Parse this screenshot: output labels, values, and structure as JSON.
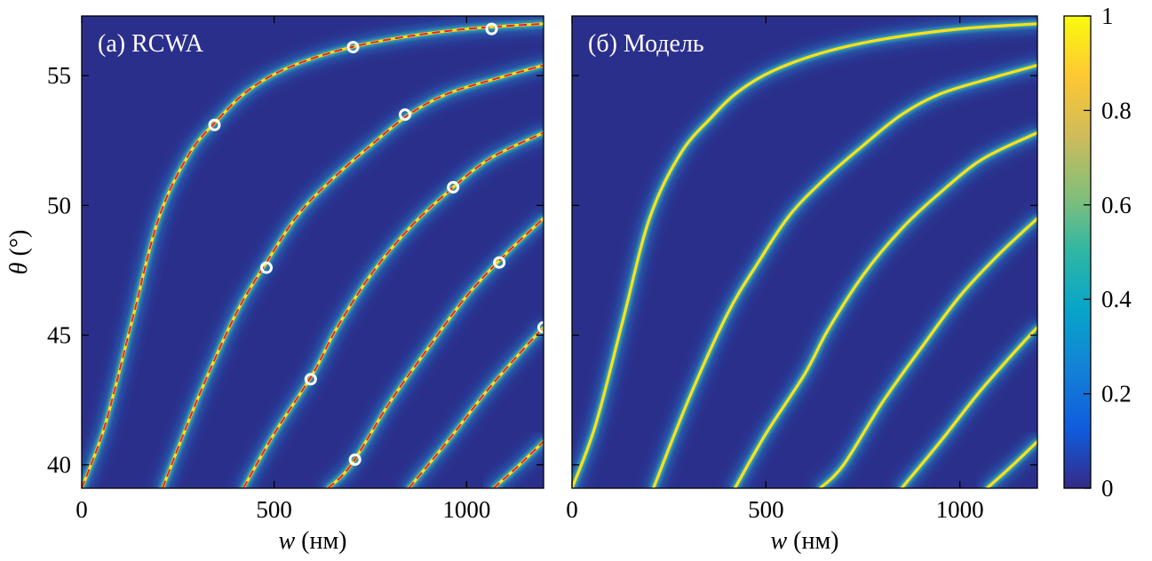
{
  "chart_data": [
    {
      "type": "heatmap",
      "panel_label": "(a) RCWA",
      "xlabel_var": "w",
      "xlabel_unit": " (нм)",
      "ylabel_var": "θ",
      "ylabel_unit": " (°)",
      "xlim": [
        0,
        1200
      ],
      "ylim": [
        39.1,
        57.3
      ],
      "xticks": [
        "0",
        "500",
        "1000"
      ],
      "yticks": [
        "40",
        "45",
        "50",
        "55"
      ],
      "colors": {
        "background": "#2b2f8c",
        "band": "#ffe01a",
        "halo": "#1f9be0",
        "fit_line": "#e8202a",
        "marker": "#ffffff"
      },
      "branches": [
        {
          "points": [
            [
              0,
              39.1
            ],
            [
              60,
              41.5
            ],
            [
              130,
              45.5
            ],
            [
              200,
              49.5
            ],
            [
              280,
              52.0
            ],
            [
              360,
              53.4
            ],
            [
              430,
              54.4
            ],
            [
              520,
              55.2
            ],
            [
              650,
              55.9
            ],
            [
              800,
              56.4
            ],
            [
              1000,
              56.8
            ],
            [
              1200,
              57.0
            ]
          ]
        },
        {
          "points": [
            [
              210,
              39.1
            ],
            [
              300,
              42.5
            ],
            [
              400,
              45.8
            ],
            [
              480,
              47.8
            ],
            [
              560,
              49.6
            ],
            [
              650,
              51.0
            ],
            [
              750,
              52.3
            ],
            [
              850,
              53.5
            ],
            [
              950,
              54.3
            ],
            [
              1080,
              54.9
            ],
            [
              1200,
              55.4
            ]
          ]
        },
        {
          "points": [
            [
              420,
              39.1
            ],
            [
              500,
              41.2
            ],
            [
              600,
              43.5
            ],
            [
              660,
              45.2
            ],
            [
              750,
              47.3
            ],
            [
              850,
              49.1
            ],
            [
              950,
              50.5
            ],
            [
              1060,
              51.8
            ],
            [
              1200,
              52.8
            ]
          ]
        },
        {
          "points": [
            [
              640,
              39.1
            ],
            [
              700,
              40.0
            ],
            [
              800,
              42.4
            ],
            [
              900,
              44.5
            ],
            [
              1000,
              46.5
            ],
            [
              1100,
              48.1
            ],
            [
              1200,
              49.5
            ]
          ]
        },
        {
          "points": [
            [
              850,
              39.1
            ],
            [
              950,
              40.9
            ],
            [
              1050,
              42.8
            ],
            [
              1150,
              44.5
            ],
            [
              1200,
              45.3
            ]
          ]
        },
        {
          "points": [
            [
              1070,
              39.1
            ],
            [
              1130,
              39.9
            ],
            [
              1200,
              40.9
            ]
          ]
        }
      ],
      "markers": [
        [
          345,
          53.1
        ],
        [
          705,
          56.1
        ],
        [
          1065,
          56.8
        ],
        [
          840,
          53.5
        ],
        [
          480,
          47.6
        ],
        [
          965,
          50.7
        ],
        [
          1085,
          47.8
        ],
        [
          595,
          43.3
        ],
        [
          1200,
          45.3
        ],
        [
          710,
          40.2
        ]
      ]
    },
    {
      "type": "heatmap",
      "panel_label": "(б) Модель",
      "xlabel_var": "w",
      "xlabel_unit": " (нм)",
      "xlim": [
        0,
        1200
      ],
      "ylim": [
        39.1,
        57.3
      ],
      "xticks": [
        "0",
        "500",
        "1000"
      ],
      "branches": [
        {
          "points": [
            [
              0,
              39.1
            ],
            [
              60,
              41.5
            ],
            [
              130,
              45.5
            ],
            [
              200,
              49.5
            ],
            [
              280,
              52.0
            ],
            [
              360,
              53.4
            ],
            [
              430,
              54.4
            ],
            [
              520,
              55.2
            ],
            [
              650,
              55.9
            ],
            [
              800,
              56.4
            ],
            [
              1000,
              56.8
            ],
            [
              1200,
              57.0
            ]
          ]
        },
        {
          "points": [
            [
              210,
              39.1
            ],
            [
              300,
              42.5
            ],
            [
              400,
              45.8
            ],
            [
              480,
              47.8
            ],
            [
              560,
              49.6
            ],
            [
              650,
              51.0
            ],
            [
              750,
              52.3
            ],
            [
              850,
              53.5
            ],
            [
              950,
              54.3
            ],
            [
              1080,
              54.9
            ],
            [
              1200,
              55.4
            ]
          ]
        },
        {
          "points": [
            [
              420,
              39.1
            ],
            [
              500,
              41.2
            ],
            [
              600,
              43.5
            ],
            [
              660,
              45.2
            ],
            [
              750,
              47.3
            ],
            [
              850,
              49.1
            ],
            [
              950,
              50.5
            ],
            [
              1060,
              51.8
            ],
            [
              1200,
              52.8
            ]
          ]
        },
        {
          "points": [
            [
              640,
              39.1
            ],
            [
              700,
              40.0
            ],
            [
              800,
              42.4
            ],
            [
              900,
              44.5
            ],
            [
              1000,
              46.5
            ],
            [
              1100,
              48.1
            ],
            [
              1200,
              49.5
            ]
          ]
        },
        {
          "points": [
            [
              850,
              39.1
            ],
            [
              950,
              40.9
            ],
            [
              1050,
              42.8
            ],
            [
              1150,
              44.5
            ],
            [
              1200,
              45.3
            ]
          ]
        },
        {
          "points": [
            [
              1070,
              39.1
            ],
            [
              1130,
              39.9
            ],
            [
              1200,
              40.9
            ]
          ]
        }
      ]
    }
  ],
  "colorbar": {
    "range": [
      0,
      1
    ],
    "ticks": [
      "0",
      "0.2",
      "0.4",
      "0.6",
      "0.8",
      "1"
    ],
    "stops": [
      "#352a87",
      "#0f5cdd",
      "#1481d6",
      "#06a4ca",
      "#2eb7a4",
      "#87bf77",
      "#d1bb59",
      "#fec832",
      "#f9fb0e"
    ]
  }
}
